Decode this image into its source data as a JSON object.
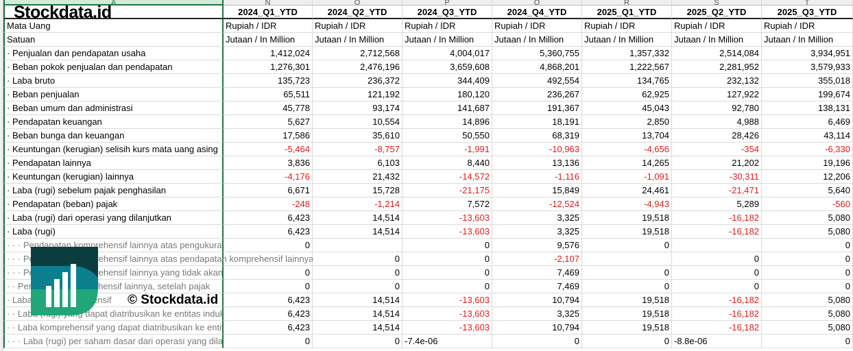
{
  "column_letters": [
    "A",
    "N",
    "O",
    "P",
    "Q",
    "R",
    "S",
    "T"
  ],
  "periods": [
    "2024_Q1_YTD",
    "2024_Q2_YTD",
    "2024_Q3_YTD",
    "2024_Q4_YTD",
    "2025_Q1_YTD",
    "2025_Q2_YTD",
    "2025_Q3_YTD"
  ],
  "currency": {
    "label": "Mata Uang",
    "value": "Rupiah / IDR"
  },
  "unit": {
    "label": "Satuan",
    "value": "Jutaan / In Million"
  },
  "rows": [
    {
      "label": "· Penjualan dan pendapatan usaha",
      "values": [
        "1,412,024",
        "2,712,568",
        "4,004,017",
        "5,360,755",
        "1,357,332",
        "2,514,084",
        "3,934,951"
      ]
    },
    {
      "label": "· Beban pokok penjualan dan pendapatan",
      "values": [
        "1,276,301",
        "2,476,196",
        "3,659,608",
        "4,868,201",
        "1,222,567",
        "2,281,952",
        "3,579,933"
      ]
    },
    {
      "label": "· Laba bruto",
      "values": [
        "135,723",
        "236,372",
        "344,409",
        "492,554",
        "134,765",
        "232,132",
        "355,018"
      ]
    },
    {
      "label": "· Beban penjualan",
      "values": [
        "65,511",
        "121,192",
        "180,120",
        "236,267",
        "62,925",
        "127,922",
        "199,674"
      ]
    },
    {
      "label": "· Beban umum dan administrasi",
      "values": [
        "45,778",
        "93,174",
        "141,687",
        "191,367",
        "45,043",
        "92,780",
        "138,131"
      ]
    },
    {
      "label": "· Pendapatan keuangan",
      "values": [
        "5,627",
        "10,554",
        "14,896",
        "18,191",
        "2,850",
        "4,988",
        "6,469"
      ]
    },
    {
      "label": "· Beban bunga dan keuangan",
      "values": [
        "17,586",
        "35,610",
        "50,550",
        "68,319",
        "13,704",
        "28,426",
        "43,114"
      ]
    },
    {
      "label": "· Keuntungan (kerugian) selisih kurs mata uang asing",
      "values": [
        "-5,464",
        "-8,757",
        "-1,991",
        "-10,963",
        "-4,656",
        "-354",
        "-6,330"
      ]
    },
    {
      "label": "· Pendapatan lainnya",
      "values": [
        "3,836",
        "6,103",
        "8,440",
        "13,136",
        "14,265",
        "21,202",
        "19,196"
      ]
    },
    {
      "label": "· Keuntungan (kerugian) lainnya",
      "values": [
        "-4,176",
        "21,432",
        "-14,572",
        "-1,116",
        "-1,091",
        "-30,311",
        "12,206"
      ]
    },
    {
      "label": "· Laba (rugi) sebelum pajak penghasilan",
      "values": [
        "6,671",
        "15,728",
        "-21,175",
        "15,849",
        "24,461",
        "-21,471",
        "5,640"
      ]
    },
    {
      "label": "· Pendapatan (beban) pajak",
      "values": [
        "-248",
        "-1,214",
        "7,572",
        "-12,524",
        "-4,943",
        "5,289",
        "-560"
      ]
    },
    {
      "label": "· Laba (rugi) dari operasi yang dilanjutkan",
      "values": [
        "6,423",
        "14,514",
        "-13,603",
        "3,325",
        "19,518",
        "-16,182",
        "5,080"
      ]
    },
    {
      "label": "· Laba (rugi)",
      "values": [
        "6,423",
        "14,514",
        "-13,603",
        "3,325",
        "19,518",
        "-16,182",
        "5,080"
      ]
    },
    {
      "label": "· · · Pendapatan komprehensif lainnya atas pengukuran kembali",
      "sub": true,
      "values": [
        "0",
        "",
        "0",
        "9,576",
        "0",
        "",
        "0"
      ]
    },
    {
      "label": "· · · Pendapatan komprehensif lainnya atas pendapatan komprehensif lainnya yang tidak",
      "sub": true,
      "spill": true,
      "values": [
        "",
        "0",
        "0",
        "-2,107",
        "",
        "0",
        "0"
      ]
    },
    {
      "label": "· · · Pendapatan komprehensif lainnya yang tidak akan direklasifikasi",
      "sub": true,
      "values": [
        "0",
        "0",
        "0",
        "7,469",
        "0",
        "0",
        "0"
      ]
    },
    {
      "label": "· · Pendapatan komprehensif lainnya, setelah pajak",
      "sub": true,
      "values": [
        "0",
        "0",
        "0",
        "7,469",
        "0",
        "0",
        "0"
      ]
    },
    {
      "label": "· Laba (rugi) komprehensif",
      "sub": true,
      "values": [
        "6,423",
        "14,514",
        "-13,603",
        "10,794",
        "19,518",
        "-16,182",
        "5,080"
      ]
    },
    {
      "label": "· · Laba (rugi) yang dapat diatribusikan ke entitas induk",
      "sub": true,
      "values": [
        "6,423",
        "14,514",
        "-13,603",
        "3,325",
        "19,518",
        "-16,182",
        "5,080"
      ]
    },
    {
      "label": "· · Laba komprehensif yang dapat diatribusikan ke entitas induk",
      "sub": true,
      "values": [
        "6,423",
        "14,514",
        "-13,603",
        "10,794",
        "19,518",
        "-16,182",
        "5,080"
      ]
    },
    {
      "label": "· · · Laba (rugi) per saham dasar dari operasi yang dilanjutkan",
      "sub": true,
      "values": [
        "0",
        "0",
        "-7.4e-06",
        "0",
        "0",
        "-8.8e-06",
        "0"
      ]
    }
  ],
  "watermark": {
    "copyright": "© Stockdata.id",
    "brand": "Stockdata.id"
  },
  "colors": {
    "negative": "#e01b1b",
    "accent": "#217346"
  }
}
